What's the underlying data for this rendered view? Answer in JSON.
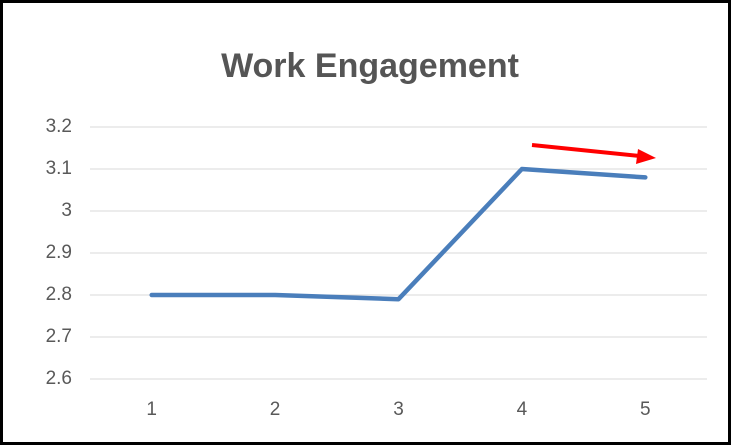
{
  "chart_data": {
    "type": "line",
    "title": "Work Engagement",
    "categories": [
      "1",
      "2",
      "3",
      "4",
      "5"
    ],
    "series": [
      {
        "name": "Work Engagement",
        "color": "#4a7ebb",
        "values": [
          2.8,
          2.8,
          2.79,
          3.1,
          3.08
        ]
      }
    ],
    "ylim": [
      2.6,
      3.2
    ],
    "yticks": [
      2.6,
      2.7,
      2.8,
      2.9,
      3,
      3.1,
      3.2
    ],
    "grid": true
  }
}
